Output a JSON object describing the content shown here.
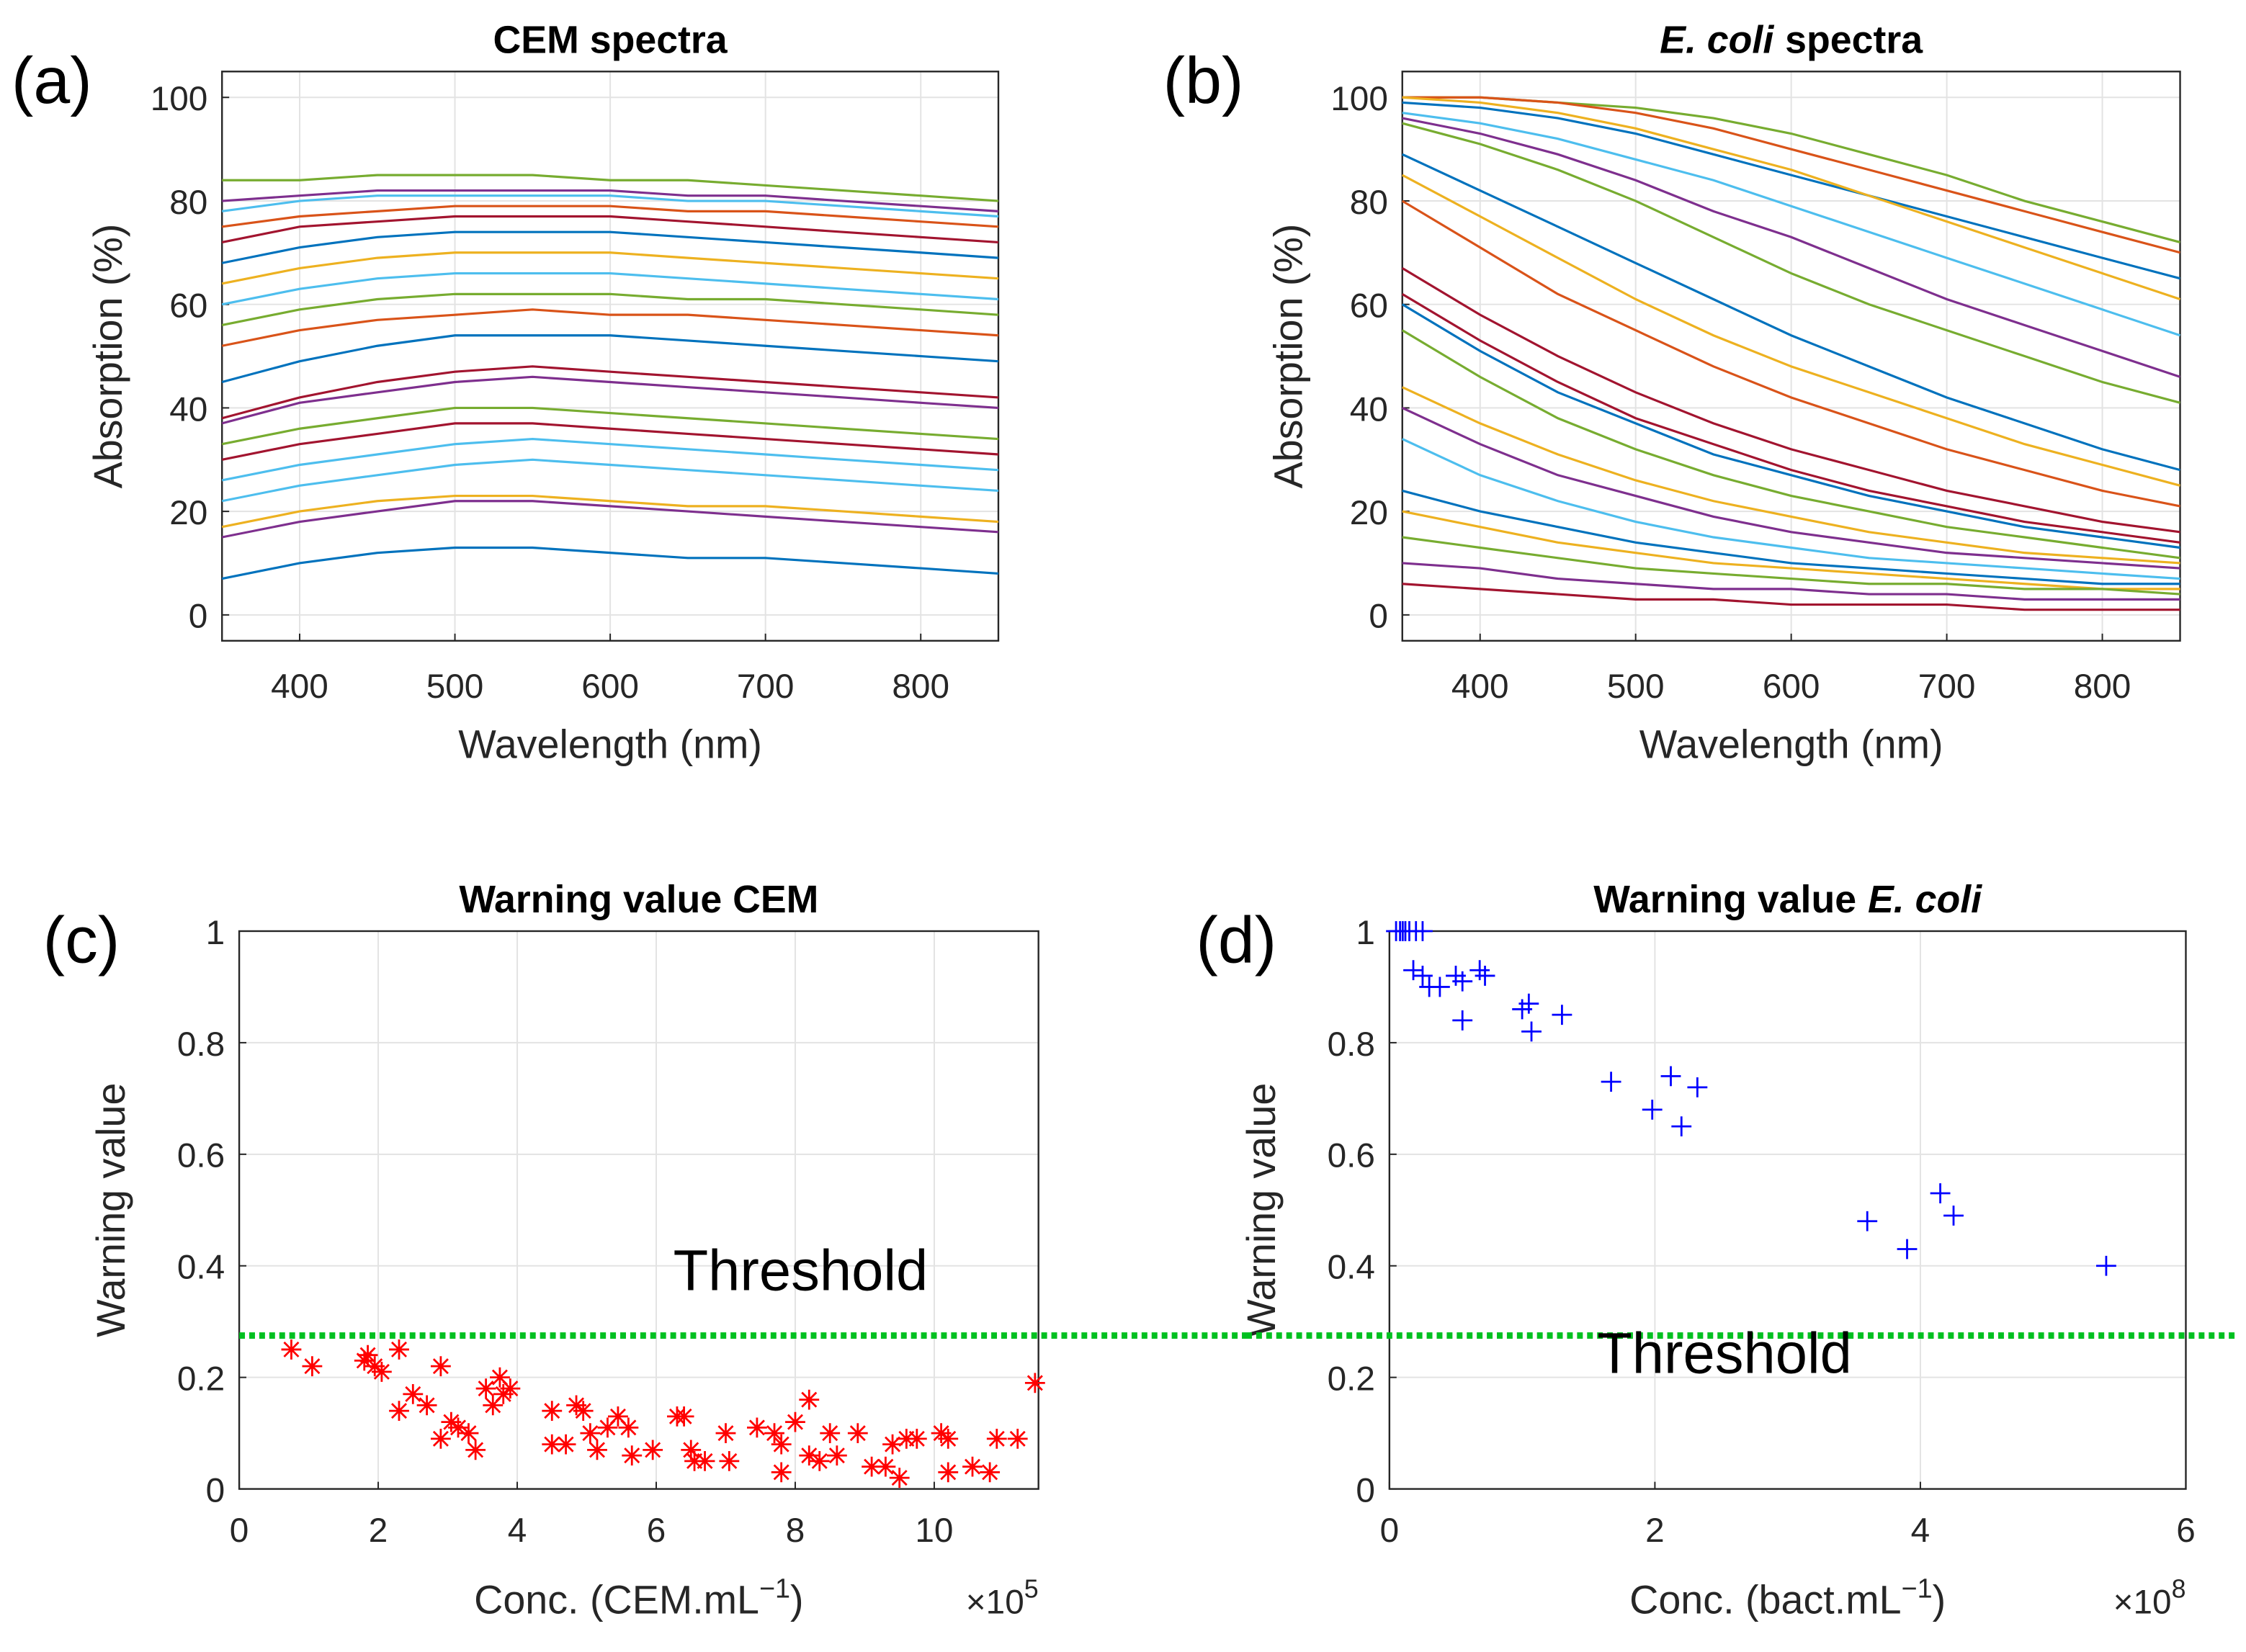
{
  "chart_data": [
    {
      "type": "line",
      "panel_label": "(a)",
      "title_parts": [
        {
          "text": "CEM spectra",
          "italic": false
        }
      ],
      "xlabel": "Wavelength (nm)",
      "ylabel": "Absorption (%)",
      "xlim": [
        350,
        850
      ],
      "xticks": [
        400,
        500,
        600,
        700,
        800
      ],
      "ylim": [
        -5,
        105
      ],
      "yticks": [
        0,
        20,
        40,
        60,
        80,
        100
      ],
      "grid": true,
      "x": [
        350,
        400,
        450,
        500,
        550,
        600,
        650,
        700,
        750,
        800,
        850
      ],
      "series": [
        {
          "color": "#0072BD",
          "values": [
            7,
            10,
            12,
            13,
            13,
            12,
            11,
            11,
            10,
            9,
            8
          ]
        },
        {
          "color": "#7E2F8E",
          "values": [
            15,
            18,
            20,
            22,
            22,
            21,
            20,
            19,
            18,
            17,
            16
          ]
        },
        {
          "color": "#EDB120",
          "values": [
            17,
            20,
            22,
            23,
            23,
            22,
            21,
            21,
            20,
            19,
            18
          ]
        },
        {
          "color": "#4DBEEE",
          "values": [
            22,
            25,
            27,
            29,
            30,
            29,
            28,
            27,
            26,
            25,
            24
          ]
        },
        {
          "color": "#4DBEEE",
          "values": [
            26,
            29,
            31,
            33,
            34,
            33,
            32,
            31,
            30,
            29,
            28
          ]
        },
        {
          "color": "#A2142F",
          "values": [
            30,
            33,
            35,
            37,
            37,
            36,
            35,
            34,
            33,
            32,
            31
          ]
        },
        {
          "color": "#77AC30",
          "values": [
            33,
            36,
            38,
            40,
            40,
            39,
            38,
            37,
            36,
            35,
            34
          ]
        },
        {
          "color": "#7E2F8E",
          "values": [
            37,
            41,
            43,
            45,
            46,
            45,
            44,
            43,
            42,
            41,
            40
          ]
        },
        {
          "color": "#A2142F",
          "values": [
            38,
            42,
            45,
            47,
            48,
            47,
            46,
            45,
            44,
            43,
            42
          ]
        },
        {
          "color": "#0072BD",
          "values": [
            45,
            49,
            52,
            54,
            54,
            54,
            53,
            52,
            51,
            50,
            49
          ]
        },
        {
          "color": "#D95319",
          "values": [
            52,
            55,
            57,
            58,
            59,
            58,
            58,
            57,
            56,
            55,
            54
          ]
        },
        {
          "color": "#77AC30",
          "values": [
            56,
            59,
            61,
            62,
            62,
            62,
            61,
            61,
            60,
            59,
            58
          ]
        },
        {
          "color": "#4DBEEE",
          "values": [
            60,
            63,
            65,
            66,
            66,
            66,
            65,
            64,
            63,
            62,
            61
          ]
        },
        {
          "color": "#EDB120",
          "values": [
            64,
            67,
            69,
            70,
            70,
            70,
            69,
            68,
            67,
            66,
            65
          ]
        },
        {
          "color": "#0072BD",
          "values": [
            68,
            71,
            73,
            74,
            74,
            74,
            73,
            72,
            71,
            70,
            69
          ]
        },
        {
          "color": "#A2142F",
          "values": [
            72,
            75,
            76,
            77,
            77,
            77,
            76,
            75,
            74,
            73,
            72
          ]
        },
        {
          "color": "#D95319",
          "values": [
            75,
            77,
            78,
            79,
            79,
            79,
            78,
            78,
            77,
            76,
            75
          ]
        },
        {
          "color": "#4DBEEE",
          "values": [
            78,
            80,
            81,
            81,
            81,
            81,
            80,
            80,
            79,
            78,
            77
          ]
        },
        {
          "color": "#7E2F8E",
          "values": [
            80,
            81,
            82,
            82,
            82,
            82,
            81,
            81,
            80,
            79,
            78
          ]
        },
        {
          "color": "#77AC30",
          "values": [
            84,
            84,
            85,
            85,
            85,
            84,
            84,
            83,
            82,
            81,
            80
          ]
        }
      ]
    },
    {
      "type": "line",
      "panel_label": "(b)",
      "title_parts": [
        {
          "text": "E. coli",
          "italic": true
        },
        {
          "text": "spectra",
          "italic": false
        }
      ],
      "xlabel": "Wavelength (nm)",
      "ylabel": "Absorption (%)",
      "xlim": [
        350,
        850
      ],
      "xticks": [
        400,
        500,
        600,
        700,
        800
      ],
      "ylim": [
        -5,
        105
      ],
      "yticks": [
        0,
        20,
        40,
        60,
        80,
        100
      ],
      "grid": true,
      "x": [
        350,
        400,
        450,
        500,
        550,
        600,
        650,
        700,
        750,
        800,
        850
      ],
      "series": [
        {
          "color": "#77AC30",
          "values": [
            100,
            100,
            99,
            98,
            96,
            93,
            89,
            85,
            80,
            76,
            72
          ]
        },
        {
          "color": "#D95319",
          "values": [
            100,
            100,
            99,
            97,
            94,
            90,
            86,
            82,
            78,
            74,
            70
          ]
        },
        {
          "color": "#0072BD",
          "values": [
            99,
            98,
            96,
            93,
            89,
            85,
            81,
            77,
            73,
            69,
            65
          ]
        },
        {
          "color": "#EDB120",
          "values": [
            100,
            99,
            97,
            94,
            90,
            86,
            81,
            76,
            71,
            66,
            61
          ]
        },
        {
          "color": "#4DBEEE",
          "values": [
            97,
            95,
            92,
            88,
            84,
            79,
            74,
            69,
            64,
            59,
            54
          ]
        },
        {
          "color": "#7E2F8E",
          "values": [
            96,
            93,
            89,
            84,
            78,
            73,
            67,
            61,
            56,
            51,
            46
          ]
        },
        {
          "color": "#77AC30",
          "values": [
            95,
            91,
            86,
            80,
            73,
            66,
            60,
            55,
            50,
            45,
            41
          ]
        },
        {
          "color": "#0072BD",
          "values": [
            89,
            82,
            75,
            68,
            61,
            54,
            48,
            42,
            37,
            32,
            28
          ]
        },
        {
          "color": "#EDB120",
          "values": [
            85,
            77,
            69,
            61,
            54,
            48,
            43,
            38,
            33,
            29,
            25
          ]
        },
        {
          "color": "#D95319",
          "values": [
            80,
            71,
            62,
            55,
            48,
            42,
            37,
            32,
            28,
            24,
            21
          ]
        },
        {
          "color": "#A2142F",
          "values": [
            67,
            58,
            50,
            43,
            37,
            32,
            28,
            24,
            21,
            18,
            16
          ]
        },
        {
          "color": "#A2142F",
          "values": [
            62,
            53,
            45,
            38,
            33,
            28,
            24,
            21,
            18,
            16,
            14
          ]
        },
        {
          "color": "#0072BD",
          "values": [
            60,
            51,
            43,
            37,
            31,
            27,
            23,
            20,
            17,
            15,
            13
          ]
        },
        {
          "color": "#77AC30",
          "values": [
            55,
            46,
            38,
            32,
            27,
            23,
            20,
            17,
            15,
            13,
            11
          ]
        },
        {
          "color": "#EDB120",
          "values": [
            44,
            37,
            31,
            26,
            22,
            19,
            16,
            14,
            12,
            11,
            10
          ]
        },
        {
          "color": "#7E2F8E",
          "values": [
            40,
            33,
            27,
            23,
            19,
            16,
            14,
            12,
            11,
            10,
            9
          ]
        },
        {
          "color": "#4DBEEE",
          "values": [
            34,
            27,
            22,
            18,
            15,
            13,
            11,
            10,
            9,
            8,
            7
          ]
        },
        {
          "color": "#0072BD",
          "values": [
            24,
            20,
            17,
            14,
            12,
            10,
            9,
            8,
            7,
            6,
            6
          ]
        },
        {
          "color": "#EDB120",
          "values": [
            20,
            17,
            14,
            12,
            10,
            9,
            8,
            7,
            6,
            5,
            5
          ]
        },
        {
          "color": "#77AC30",
          "values": [
            15,
            13,
            11,
            9,
            8,
            7,
            6,
            6,
            5,
            5,
            4
          ]
        },
        {
          "color": "#7E2F8E",
          "values": [
            10,
            9,
            7,
            6,
            5,
            5,
            4,
            4,
            3,
            3,
            3
          ]
        },
        {
          "color": "#A2142F",
          "values": [
            6,
            5,
            4,
            3,
            3,
            2,
            2,
            2,
            1,
            1,
            1
          ]
        }
      ]
    },
    {
      "type": "scatter",
      "panel_label": "(c)",
      "title_parts": [
        {
          "text": "Warning value CEM",
          "italic": false
        }
      ],
      "xlabel": "Conc. (CEM.mL",
      "xlabel_sup": "−1",
      "xlabel_end": ")",
      "x_multiplier": "×10",
      "x_exponent": "5",
      "ylabel": "Warning value",
      "xlim": [
        0,
        11.5
      ],
      "xticks": [
        0,
        2,
        4,
        6,
        8,
        10
      ],
      "ylim": [
        0,
        1
      ],
      "yticks": [
        0,
        0.2,
        0.4,
        0.6,
        0.8,
        1
      ],
      "grid": true,
      "marker": "star",
      "color": "#ff0000",
      "threshold": 0.275,
      "threshold_label": "Threshold",
      "threshold_color": "#00c020",
      "x": [
        0.75,
        1.05,
        1.8,
        1.85,
        1.95,
        2.05,
        2.3,
        2.3,
        2.5,
        2.7,
        2.9,
        2.9,
        3.05,
        3.15,
        3.3,
        3.4,
        3.55,
        3.65,
        3.75,
        3.8,
        3.9,
        4.5,
        4.5,
        4.7,
        4.85,
        4.95,
        5.05,
        5.15,
        5.3,
        5.45,
        5.6,
        5.65,
        5.95,
        6.3,
        6.4,
        6.5,
        6.55,
        6.7,
        7.0,
        7.05,
        7.45,
        7.7,
        7.8,
        7.8,
        8.0,
        8.2,
        8.2,
        8.35,
        8.5,
        8.6,
        8.9,
        9.1,
        9.3,
        9.4,
        9.5,
        9.6,
        9.75,
        10.1,
        10.2,
        10.2,
        10.55,
        10.8,
        10.9,
        11.2,
        11.45
      ],
      "values": [
        0.25,
        0.22,
        0.23,
        0.24,
        0.22,
        0.21,
        0.25,
        0.14,
        0.17,
        0.15,
        0.22,
        0.09,
        0.12,
        0.11,
        0.1,
        0.07,
        0.18,
        0.15,
        0.2,
        0.17,
        0.18,
        0.14,
        0.08,
        0.08,
        0.15,
        0.14,
        0.1,
        0.07,
        0.11,
        0.13,
        0.11,
        0.06,
        0.07,
        0.13,
        0.13,
        0.07,
        0.05,
        0.05,
        0.1,
        0.05,
        0.11,
        0.1,
        0.03,
        0.08,
        0.12,
        0.16,
        0.06,
        0.05,
        0.1,
        0.06,
        0.1,
        0.04,
        0.04,
        0.08,
        0.02,
        0.09,
        0.09,
        0.1,
        0.03,
        0.09,
        0.04,
        0.03,
        0.09,
        0.09,
        0.19
      ]
    },
    {
      "type": "scatter",
      "panel_label": "(d)",
      "title_parts": [
        {
          "text": "Warning value",
          "italic": false
        },
        {
          "text": "E. coli",
          "italic": true
        }
      ],
      "xlabel": "Conc. (bact.mL",
      "xlabel_sup": "−1",
      "xlabel_end": ")",
      "x_multiplier": "×10",
      "x_exponent": "8",
      "ylabel": "Warning value",
      "xlim": [
        0,
        6
      ],
      "xticks": [
        0,
        2,
        4,
        6
      ],
      "ylim": [
        0,
        1
      ],
      "yticks": [
        0,
        0.2,
        0.4,
        0.6,
        0.8,
        1
      ],
      "grid": true,
      "marker": "plus",
      "color": "#0000ff",
      "threshold": 0.275,
      "threshold_label": "Threshold",
      "threshold_color": "#00c020",
      "x": [
        0.05,
        0.08,
        0.1,
        0.12,
        0.15,
        0.2,
        0.25,
        0.18,
        0.25,
        0.3,
        0.38,
        0.5,
        0.55,
        0.55,
        0.68,
        0.72,
        1.0,
        1.05,
        1.07,
        1.3,
        1.67,
        1.98,
        2.12,
        2.2,
        2.32,
        3.6,
        3.9,
        4.15,
        4.25,
        5.4
      ],
      "values": [
        1,
        1,
        1,
        1,
        1,
        1,
        1,
        0.93,
        0.92,
        0.9,
        0.9,
        0.92,
        0.91,
        0.84,
        0.93,
        0.92,
        0.86,
        0.87,
        0.82,
        0.85,
        0.73,
        0.68,
        0.74,
        0.65,
        0.72,
        0.48,
        0.43,
        0.53,
        0.49,
        0.4
      ]
    }
  ]
}
